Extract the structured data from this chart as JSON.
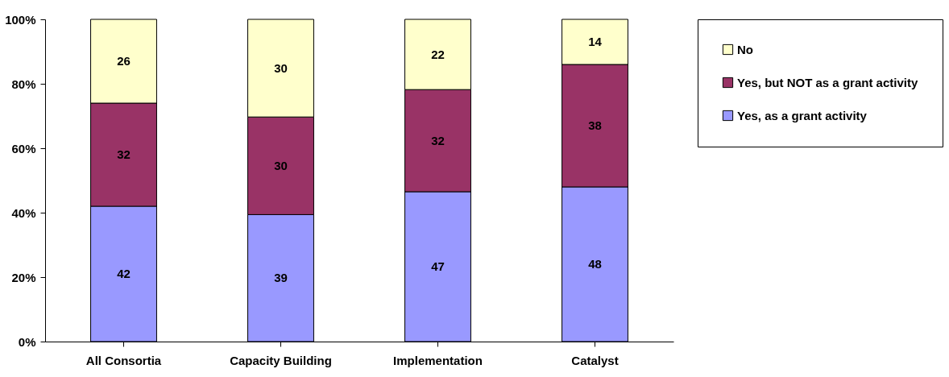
{
  "chart_data": {
    "type": "bar",
    "stacked": true,
    "categories": [
      "All Consortia",
      "Capacity Building",
      "Implementation",
      "Catalyst"
    ],
    "series": [
      {
        "name": "Yes, as a grant activity",
        "color": "#9999ff",
        "values": [
          42,
          39.4,
          46.5,
          48
        ],
        "value_labels": [
          "42",
          "39",
          "47",
          "48"
        ]
      },
      {
        "name": "Yes, but NOT as a grant activity",
        "color": "#993366",
        "values": [
          32,
          30.3,
          31.7,
          38
        ],
        "value_labels": [
          "32",
          "30",
          "32",
          "38"
        ]
      },
      {
        "name": "No",
        "color": "#ffffcc",
        "values": [
          26,
          30.3,
          21.8,
          14
        ],
        "value_labels": [
          "26",
          "30",
          "22",
          "14"
        ]
      }
    ],
    "ylim": [
      0,
      100
    ],
    "yticks": [
      {
        "value": 0,
        "label": "0%"
      },
      {
        "value": 20,
        "label": "20%"
      },
      {
        "value": 40,
        "label": "40%"
      },
      {
        "value": 60,
        "label": "60%"
      },
      {
        "value": 80,
        "label": "80%"
      },
      {
        "value": 100,
        "label": "100%"
      }
    ],
    "grid": false,
    "legend": "right"
  }
}
